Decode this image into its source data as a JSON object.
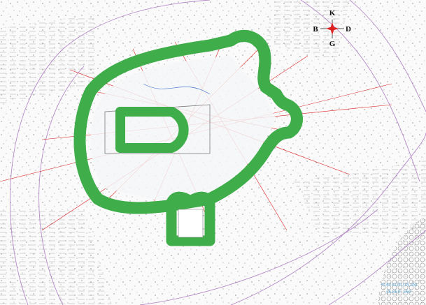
{
  "compass": {
    "north": "K",
    "west": "B",
    "east": "D",
    "south": "G"
  },
  "caption": {
    "title": "+0.60 KOTU PLANI",
    "scale": "ÖLÇEK: 1/50"
  }
}
